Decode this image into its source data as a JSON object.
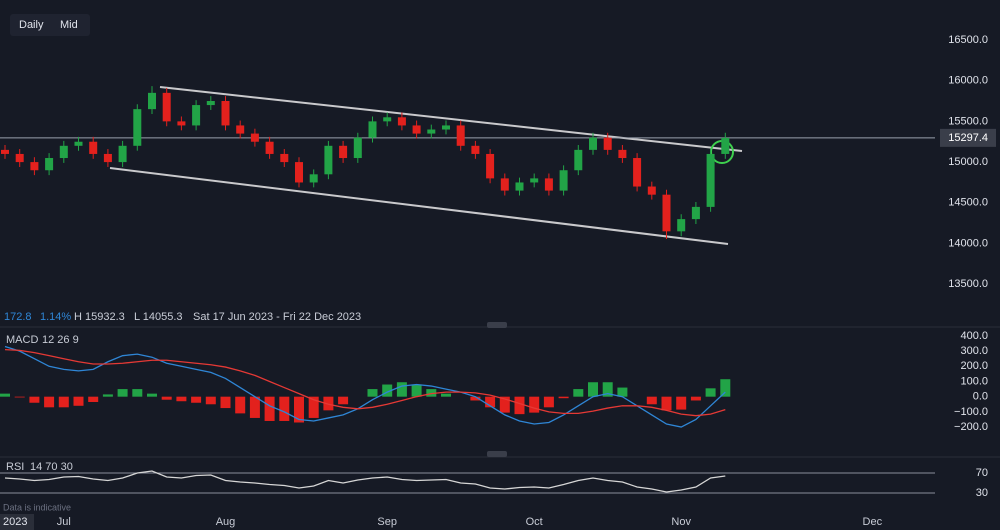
{
  "toolbar": [
    "Daily",
    "Mid"
  ],
  "info": {
    "change": "172.8",
    "change_pct": "1.14%",
    "high": "H 15932.3",
    "low": "L 14055.3",
    "range": "Sat 17 Jun 2023 - Fri 22 Dec 2023"
  },
  "year": "2023",
  "footnote": "Data is indicative",
  "chart_data": [
    {
      "type": "candlestick",
      "categories": [
        null,
        null,
        null,
        null,
        "Jul",
        null,
        null,
        null,
        null,
        null,
        null,
        null,
        null,
        null,
        null,
        "Aug",
        null,
        null,
        null,
        null,
        null,
        null,
        null,
        null,
        null,
        null,
        "Sep",
        null,
        null,
        null,
        null,
        null,
        null,
        null,
        null,
        null,
        "Oct",
        null,
        null,
        null,
        null,
        null,
        null,
        null,
        null,
        null,
        "Nov",
        null,
        null,
        null,
        null,
        null,
        null,
        null,
        null,
        null,
        null,
        null,
        null,
        "Dec",
        null,
        null,
        null,
        null
      ],
      "open": [
        15150,
        15100,
        15000,
        14900,
        15050,
        15200,
        15250,
        15100,
        15000,
        15200,
        15650,
        15850,
        15500,
        15450,
        15700,
        15750,
        15450,
        15350,
        15250,
        15100,
        15000,
        14750,
        14850,
        15200,
        15050,
        15300,
        15500,
        15550,
        15450,
        15350,
        15400,
        15450,
        15200,
        15100,
        14800,
        14650,
        14750,
        14800,
        14650,
        14900,
        15150,
        15300,
        15150,
        15050,
        14700,
        14600,
        14150,
        14300,
        14450,
        15100,
        null,
        null,
        null,
        null,
        null,
        null,
        null,
        null,
        null,
        null,
        null,
        null,
        null,
        null
      ],
      "high": [
        15210,
        15160,
        15060,
        15110,
        15260,
        15310,
        15310,
        15160,
        15260,
        15710,
        15932.3,
        15910,
        15560,
        15760,
        15810,
        15810,
        15510,
        15410,
        15310,
        15160,
        15060,
        14910,
        15260,
        15260,
        15360,
        15560,
        15610,
        15610,
        15510,
        15460,
        15510,
        15510,
        15260,
        15160,
        14860,
        14810,
        14860,
        14860,
        14960,
        15210,
        15360,
        15360,
        15210,
        15110,
        14760,
        14660,
        14360,
        14510,
        15160,
        15360,
        null,
        null,
        null,
        null,
        null,
        null,
        null,
        null,
        null,
        null,
        null,
        null,
        null,
        null
      ],
      "low": [
        15040,
        14940,
        14840,
        14840,
        14990,
        15140,
        15040,
        14940,
        14940,
        15140,
        15590,
        15440,
        15390,
        15390,
        15640,
        15390,
        15290,
        15190,
        15040,
        14940,
        14690,
        14690,
        14790,
        14990,
        14990,
        15240,
        15440,
        15390,
        15290,
        15290,
        15340,
        15140,
        15040,
        14740,
        14590,
        14590,
        14690,
        14590,
        14590,
        14840,
        15090,
        15090,
        14990,
        14640,
        14540,
        14055.3,
        14090,
        14240,
        14390,
        15040,
        null,
        null,
        null,
        null,
        null,
        null,
        null,
        null,
        null,
        null,
        null,
        null,
        null,
        null
      ],
      "close": [
        15100,
        15000,
        14900,
        15050,
        15200,
        15250,
        15100,
        15000,
        15200,
        15650,
        15850,
        15500,
        15450,
        15700,
        15750,
        15450,
        15350,
        15250,
        15100,
        15000,
        14750,
        14850,
        15200,
        15050,
        15300,
        15500,
        15550,
        15450,
        15350,
        15400,
        15450,
        15200,
        15100,
        14800,
        14650,
        14750,
        14800,
        14650,
        14900,
        15150,
        15300,
        15150,
        15050,
        14700,
        14600,
        14150,
        14300,
        14450,
        15100,
        15297.4,
        null,
        null,
        null,
        null,
        null,
        null,
        null,
        null,
        null,
        null,
        null,
        null,
        null,
        null
      ],
      "up_color": "#22a447",
      "down_color": "#e3211d",
      "ylim": [
        13000,
        16990
      ],
      "yticks": [
        {
          "value": 13500,
          "label": "13500.0"
        },
        {
          "value": 14000,
          "label": "14000.0"
        },
        {
          "value": 14500,
          "label": "14500.0"
        },
        {
          "value": 15000,
          "label": "15000.0"
        },
        {
          "value": 15500,
          "label": "15500.0"
        },
        {
          "value": 16000,
          "label": "16000.0"
        },
        {
          "value": 16500,
          "label": "16500.0"
        }
      ],
      "last_price": 15297.4
    },
    {
      "type": "macd",
      "title": "MACD",
      "params": "12 26 9",
      "series": [
        {
          "color": "#2f86d6",
          "values": [
            330,
            300,
            250,
            200,
            180,
            170,
            180,
            230,
            270,
            280,
            260,
            220,
            200,
            180,
            160,
            120,
            60,
            0,
            -60,
            -100,
            -150,
            -160,
            -140,
            -120,
            -80,
            -20,
            30,
            70,
            80,
            70,
            50,
            30,
            0,
            -60,
            -120,
            -160,
            -180,
            -170,
            -120,
            -60,
            0,
            20,
            0,
            -60,
            -120,
            -180,
            -200,
            -150,
            -60,
            30,
            null,
            null,
            null,
            null,
            null,
            null,
            null,
            null,
            null,
            null,
            null,
            null,
            null,
            null
          ]
        },
        {
          "color": "#e53935",
          "values": [
            310,
            305,
            290,
            270,
            250,
            230,
            215,
            215,
            220,
            230,
            240,
            240,
            230,
            220,
            210,
            195,
            170,
            140,
            100,
            60,
            20,
            -20,
            -50,
            -70,
            -80,
            -70,
            -50,
            -25,
            0,
            20,
            30,
            30,
            25,
            10,
            -15,
            -45,
            -75,
            -100,
            -110,
            -110,
            -95,
            -75,
            -60,
            -60,
            -70,
            -90,
            -115,
            -125,
            -115,
            -85,
            null,
            null,
            null,
            null,
            null,
            null,
            null,
            null,
            null,
            null,
            null,
            null,
            null,
            null
          ]
        }
      ],
      "histogram": {
        "up_color": "#22a447",
        "down_color": "#e3211d",
        "values": [
          20,
          -5,
          -40,
          -70,
          -70,
          -60,
          -35,
          15,
          50,
          50,
          20,
          -20,
          -30,
          -40,
          -50,
          -75,
          -110,
          -140,
          -160,
          -160,
          -170,
          -140,
          -90,
          -50,
          0,
          50,
          80,
          95,
          80,
          50,
          20,
          0,
          -25,
          -70,
          -105,
          -115,
          -105,
          -70,
          -10,
          50,
          95,
          95,
          60,
          0,
          -50,
          -90,
          -85,
          -25,
          55,
          115,
          null,
          null,
          null,
          null,
          null,
          null,
          null,
          null,
          null,
          null,
          null,
          null,
          null,
          null
        ]
      },
      "ylim": [
        -384,
        439
      ],
      "yticks": [
        {
          "value": 400,
          "label": "400.0"
        },
        {
          "value": 300,
          "label": "300.0"
        },
        {
          "value": 200,
          "label": "200.0"
        },
        {
          "value": 100,
          "label": "100.0"
        },
        {
          "value": 0,
          "label": "0.0"
        },
        {
          "value": -100,
          "label": "−100.0"
        },
        {
          "value": -200,
          "label": "−200.0"
        }
      ]
    },
    {
      "type": "line",
      "title": "RSI",
      "params": "14 70 30",
      "color": "#d6d6d6",
      "values": [
        60,
        58,
        55,
        57,
        62,
        63,
        58,
        55,
        60,
        70,
        74,
        62,
        60,
        65,
        66,
        55,
        52,
        50,
        47,
        45,
        40,
        44,
        55,
        50,
        56,
        60,
        62,
        57,
        55,
        56,
        57,
        50,
        48,
        40,
        38,
        41,
        42,
        40,
        47,
        55,
        60,
        55,
        52,
        42,
        38,
        32,
        36,
        42,
        60,
        64,
        null,
        null,
        null,
        null,
        null,
        null,
        null,
        null,
        null,
        null,
        null,
        null,
        null,
        null
      ],
      "ylim": [
        -14,
        96
      ],
      "yticks": [
        70,
        30
      ]
    }
  ]
}
